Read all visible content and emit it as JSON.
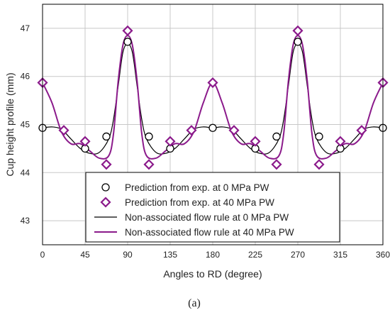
{
  "chart_data": {
    "type": "line",
    "title": "",
    "xlabel": "Angles to RD (degree)",
    "ylabel": "Cup height profile (mm)",
    "caption": "(a)",
    "xlim": [
      0,
      360
    ],
    "ylim": [
      42.5,
      47.5
    ],
    "xticks": [
      0,
      45,
      90,
      135,
      180,
      225,
      270,
      315,
      360
    ],
    "yticks": [
      43,
      44,
      45,
      46,
      47
    ],
    "grid": true,
    "legend_position": "bottom-center",
    "series": [
      {
        "name": "Prediction from exp. at 0 MPa PW",
        "kind": "scatter",
        "marker": "circle",
        "color": "#000000",
        "x": [
          0,
          45,
          67.5,
          90,
          112.5,
          135,
          180,
          225,
          247.5,
          270,
          292.5,
          315,
          360
        ],
        "y": [
          44.93,
          44.5,
          44.75,
          46.72,
          44.75,
          44.5,
          44.93,
          44.5,
          44.75,
          46.72,
          44.75,
          44.5,
          44.93
        ]
      },
      {
        "name": "Prediction from exp. at 40 MPa PW",
        "kind": "scatter",
        "marker": "diamond",
        "color": "#8b1a8b",
        "x": [
          0,
          22.5,
          45,
          67.5,
          90,
          112.5,
          135,
          157.5,
          180,
          202.5,
          225,
          247.5,
          270,
          292.5,
          315,
          337.5,
          360
        ],
        "y": [
          45.87,
          44.88,
          44.65,
          44.17,
          46.95,
          44.17,
          44.65,
          44.88,
          45.87,
          44.88,
          44.65,
          44.17,
          46.95,
          44.17,
          44.65,
          44.88,
          45.87
        ]
      },
      {
        "name": "Non-associated flow rule at 0 MPa PW",
        "kind": "line",
        "color": "#000000",
        "x": [
          0,
          10,
          20,
          30,
          40,
          50,
          60,
          70,
          75,
          80,
          85,
          90,
          95,
          100,
          105,
          110,
          120,
          130,
          140,
          150,
          160,
          170,
          180,
          190,
          200,
          210,
          220,
          230,
          240,
          250,
          255,
          260,
          265,
          270,
          275,
          280,
          285,
          290,
          300,
          310,
          320,
          330,
          340,
          350,
          360
        ],
        "y": [
          44.93,
          44.95,
          44.9,
          44.7,
          44.5,
          44.4,
          44.42,
          44.7,
          45.1,
          45.8,
          46.5,
          46.68,
          46.5,
          45.8,
          45.1,
          44.7,
          44.42,
          44.4,
          44.5,
          44.7,
          44.9,
          44.95,
          44.93,
          44.95,
          44.9,
          44.7,
          44.5,
          44.4,
          44.42,
          44.7,
          45.1,
          45.8,
          46.5,
          46.68,
          46.5,
          45.8,
          45.1,
          44.7,
          44.42,
          44.4,
          44.5,
          44.7,
          44.9,
          44.95,
          44.93
        ]
      },
      {
        "name": "Non-associated flow rule at 40 MPa PW",
        "kind": "line",
        "color": "#8b1a8b",
        "x": [
          0,
          10,
          20,
          30,
          40,
          50,
          60,
          70,
          75,
          80,
          85,
          90,
          95,
          100,
          105,
          110,
          120,
          130,
          140,
          150,
          160,
          170,
          180,
          190,
          200,
          210,
          220,
          230,
          240,
          250,
          255,
          260,
          265,
          270,
          275,
          280,
          285,
          290,
          300,
          310,
          320,
          330,
          340,
          350,
          360
        ],
        "y": [
          45.87,
          45.45,
          44.85,
          44.6,
          44.6,
          44.45,
          44.3,
          44.35,
          44.8,
          45.9,
          46.65,
          46.85,
          46.65,
          45.9,
          44.8,
          44.35,
          44.3,
          44.45,
          44.6,
          44.6,
          44.85,
          45.45,
          45.87,
          45.45,
          44.85,
          44.6,
          44.6,
          44.45,
          44.3,
          44.35,
          44.8,
          45.9,
          46.65,
          46.85,
          46.65,
          45.9,
          44.8,
          44.35,
          44.3,
          44.45,
          44.6,
          44.6,
          44.85,
          45.45,
          45.87
        ]
      }
    ]
  }
}
